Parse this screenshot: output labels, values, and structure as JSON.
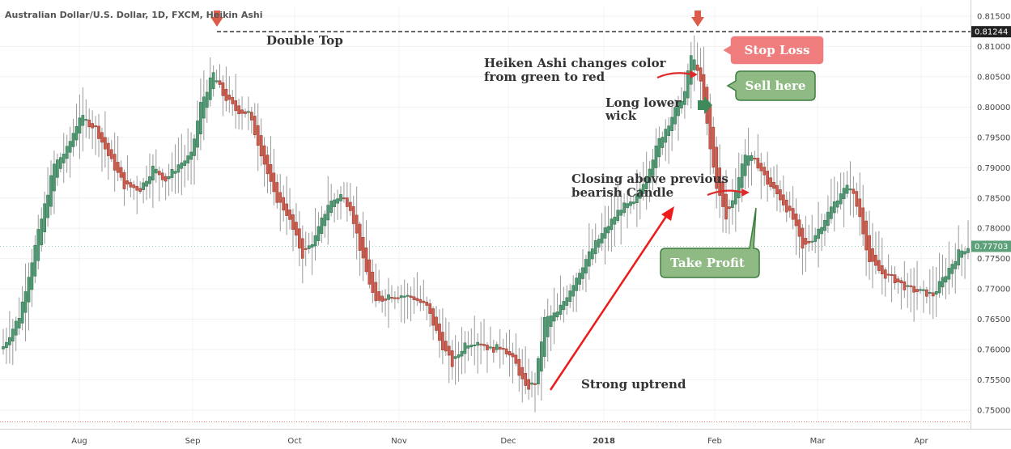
{
  "chart_data": {
    "type": "candlestick",
    "title": "Australian Dollar/U.S. Dollar, 1D, FXCM, Heikin Ashi",
    "y_ticks": [
      "0.81500",
      "0.81000",
      "0.80500",
      "0.80000",
      "0.79500",
      "0.79000",
      "0.78500",
      "0.78000",
      "0.77500",
      "0.77000",
      "0.76500",
      "0.76000",
      "0.75500",
      "0.75000"
    ],
    "ylim": [
      0.749,
      0.817
    ],
    "x_ticks": [
      {
        "label": "Aug",
        "bold": false
      },
      {
        "label": "Sep",
        "bold": false
      },
      {
        "label": "Oct",
        "bold": false
      },
      {
        "label": "Nov",
        "bold": false
      },
      {
        "label": "Dec",
        "bold": false
      },
      {
        "label": "2018",
        "bold": true
      },
      {
        "label": "Feb",
        "bold": false
      },
      {
        "label": "Mar",
        "bold": false
      },
      {
        "label": "Apr",
        "bold": false
      }
    ],
    "resistance_level": 0.81244,
    "resistance_label": "0.81244",
    "last_price": 0.77703,
    "last_price_label": "0.77703",
    "colors": {
      "bull": "#4f9a72",
      "bear": "#cf5b4c",
      "wick": "#9a9a9a",
      "resistance": "#333333",
      "last_price": "#5da07a",
      "arrow": "#dd3b34",
      "take_profit": "#8fba84",
      "sell": "#8fba84",
      "stop_loss": "#f07d7d",
      "sell_arrow": "#3f8a5a"
    },
    "anchors": [
      [
        0,
        0.7605
      ],
      [
        5,
        0.7655
      ],
      [
        10,
        0.777
      ],
      [
        16,
        0.7905
      ],
      [
        20,
        0.793
      ],
      [
        24,
        0.7985
      ],
      [
        29,
        0.7965
      ],
      [
        33,
        0.792
      ],
      [
        38,
        0.787
      ],
      [
        43,
        0.7865
      ],
      [
        47,
        0.79
      ],
      [
        51,
        0.788
      ],
      [
        55,
        0.7905
      ],
      [
        59,
        0.792
      ],
      [
        62,
        0.8005
      ],
      [
        66,
        0.8055
      ],
      [
        69,
        0.802
      ],
      [
        73,
        0.7995
      ],
      [
        77,
        0.799
      ],
      [
        81,
        0.7925
      ],
      [
        85,
        0.7855
      ],
      [
        89,
        0.7825
      ],
      [
        94,
        0.7755
      ],
      [
        98,
        0.7785
      ],
      [
        102,
        0.784
      ],
      [
        106,
        0.7855
      ],
      [
        109,
        0.7835
      ],
      [
        113,
        0.7745
      ],
      [
        117,
        0.7675
      ],
      [
        121,
        0.769
      ],
      [
        125,
        0.769
      ],
      [
        129,
        0.7685
      ],
      [
        133,
        0.767
      ],
      [
        137,
        0.7615
      ],
      [
        141,
        0.7575
      ],
      [
        145,
        0.761
      ],
      [
        149,
        0.7615
      ],
      [
        153,
        0.76
      ],
      [
        157,
        0.7605
      ],
      [
        161,
        0.7575
      ],
      [
        164,
        0.7535
      ],
      [
        167,
        0.7545
      ],
      [
        170,
        0.765
      ],
      [
        174,
        0.766
      ],
      [
        178,
        0.77
      ],
      [
        182,
        0.774
      ],
      [
        186,
        0.7775
      ],
      [
        190,
        0.7805
      ],
      [
        194,
        0.7835
      ],
      [
        198,
        0.784
      ],
      [
        202,
        0.789
      ],
      [
        206,
        0.7945
      ],
      [
        210,
        0.7985
      ],
      [
        214,
        0.8025
      ],
      [
        216,
        0.8085
      ],
      [
        218,
        0.8065
      ],
      [
        220,
        0.801
      ],
      [
        222,
        0.793
      ],
      [
        224,
        0.787
      ],
      [
        227,
        0.7815
      ],
      [
        230,
        0.7865
      ],
      [
        233,
        0.7925
      ],
      [
        237,
        0.7905
      ],
      [
        240,
        0.7875
      ],
      [
        244,
        0.785
      ],
      [
        248,
        0.7815
      ],
      [
        251,
        0.7765
      ],
      [
        255,
        0.779
      ],
      [
        259,
        0.7825
      ],
      [
        263,
        0.786
      ],
      [
        266,
        0.787
      ],
      [
        269,
        0.782
      ],
      [
        272,
        0.7745
      ],
      [
        276,
        0.7725
      ],
      [
        280,
        0.7715
      ],
      [
        284,
        0.77
      ],
      [
        288,
        0.7695
      ],
      [
        292,
        0.769
      ],
      [
        296,
        0.7725
      ],
      [
        300,
        0.776
      ],
      [
        303,
        0.777
      ]
    ],
    "annotations": [
      {
        "text": "Double Top"
      },
      {
        "text": "Heiken Ashi changes color"
      },
      {
        "text": "from green to red"
      },
      {
        "text": "Long lower"
      },
      {
        "text": "wick"
      },
      {
        "text": "Closing above previous"
      },
      {
        "text": "bearish Candle"
      },
      {
        "text": "Strong uptrend"
      }
    ],
    "callouts": {
      "stop_loss": "Stop Loss",
      "sell_here": "Sell here",
      "take_profit": "Take Profit"
    }
  }
}
